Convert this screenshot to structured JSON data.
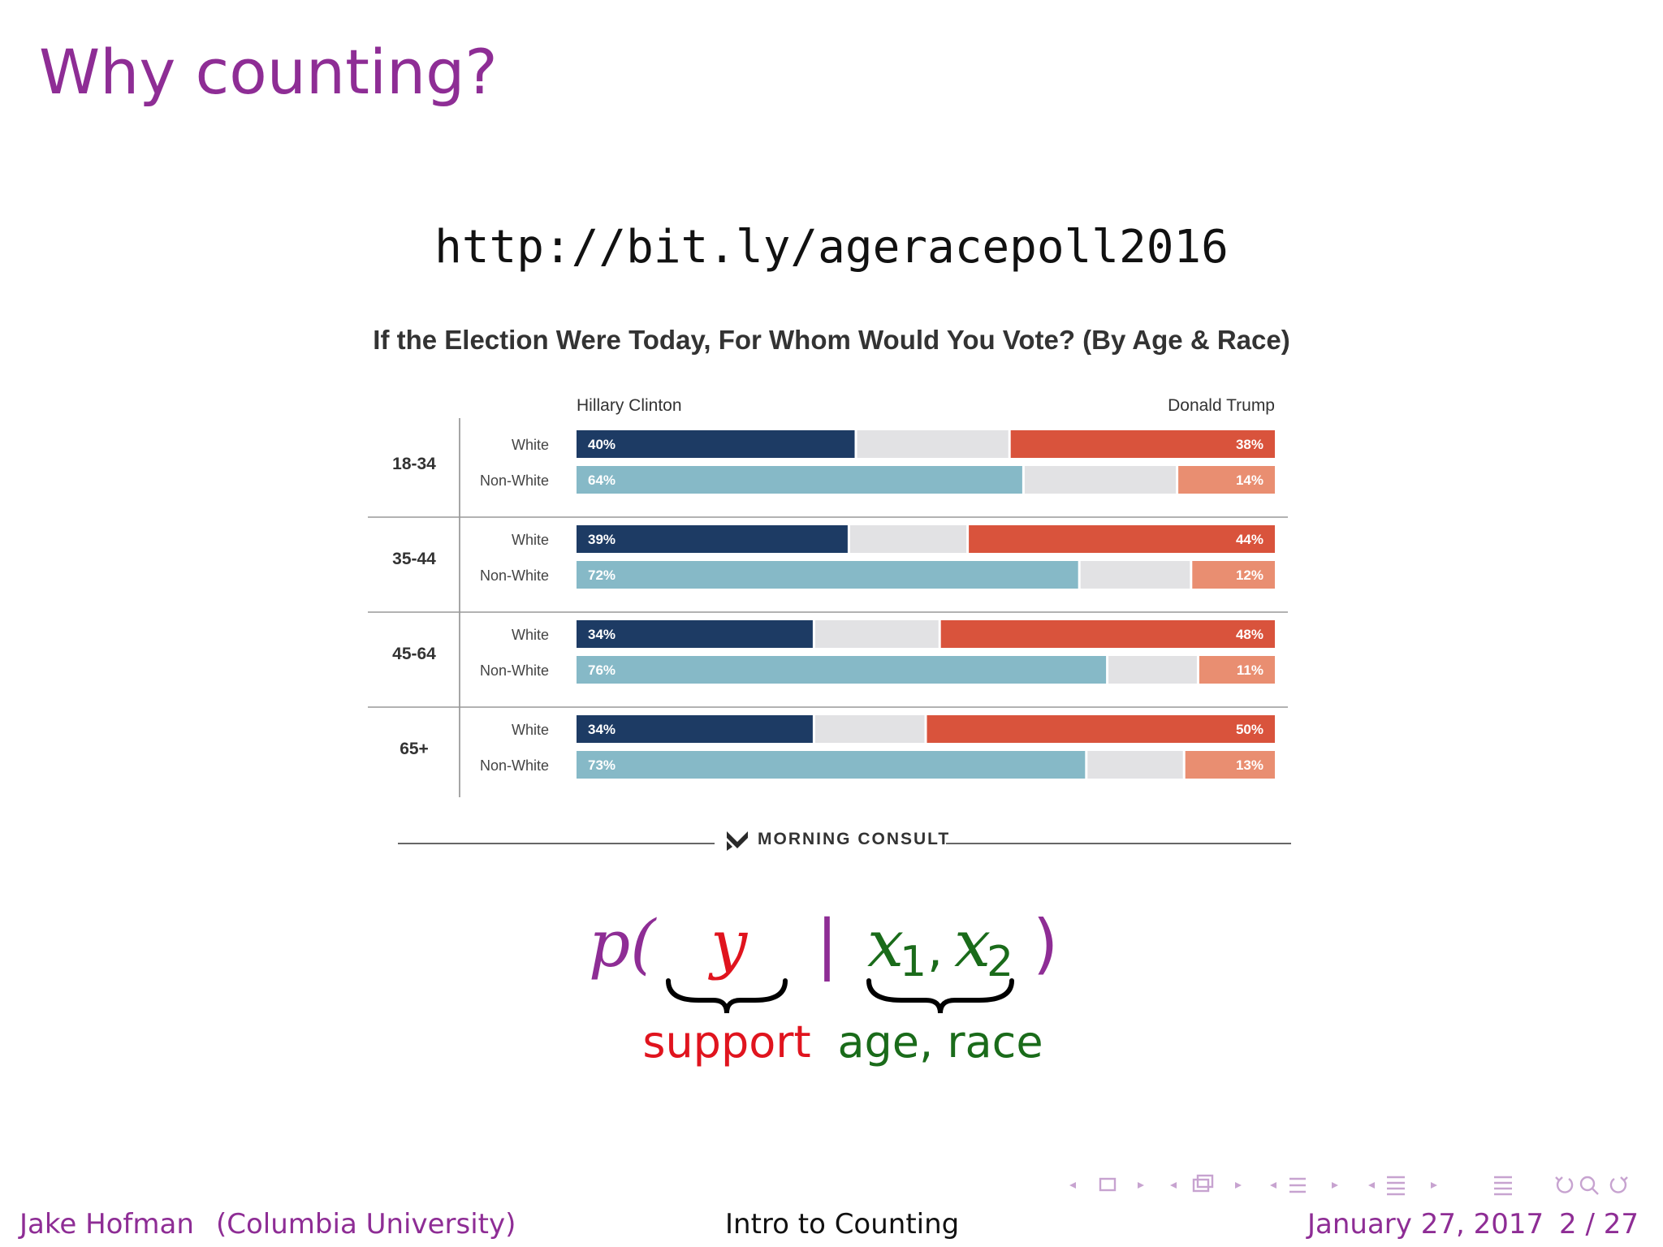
{
  "slide": {
    "title": "Why counting?",
    "url": "http://bit.ly/ageracepoll2016"
  },
  "chart_data": {
    "type": "bar",
    "title": "If the Election Were Today, For Whom Would You Vote? (By Age & Race)",
    "left_legend": "Hillary Clinton",
    "right_legend": "Donald Trump",
    "groups": [
      {
        "label": "18-34",
        "rows": [
          {
            "label": "White",
            "clinton": 40,
            "trump": 38
          },
          {
            "label": "Non-White",
            "clinton": 64,
            "trump": 14
          }
        ]
      },
      {
        "label": "35-44",
        "rows": [
          {
            "label": "White",
            "clinton": 39,
            "trump": 44
          },
          {
            "label": "Non-White",
            "clinton": 72,
            "trump": 12
          }
        ]
      },
      {
        "label": "45-64",
        "rows": [
          {
            "label": "White",
            "clinton": 34,
            "trump": 48
          },
          {
            "label": "Non-White",
            "clinton": 76,
            "trump": 11
          }
        ]
      },
      {
        "label": "65+",
        "rows": [
          {
            "label": "White",
            "clinton": 34,
            "trump": 50
          },
          {
            "label": "Non-White",
            "clinton": 73,
            "trump": 13
          }
        ]
      }
    ],
    "xlim": [
      0,
      100
    ],
    "colors": {
      "clinton_white": "#1d3b64",
      "clinton_nonwhite": "#86b9c7",
      "undecided": "#e2e2e4",
      "trump_white": "#d9533c",
      "trump_nonwhite": "#e98e71"
    },
    "source": "MORNING CONSULT"
  },
  "formula": {
    "p": "p(",
    "y": "y",
    "bar": "|",
    "x1": "x",
    "x1_sub": "1",
    "comma": ",",
    "x2": "x",
    "x2_sub": "2",
    "close": ")",
    "support_label": "support",
    "age_race_label": "age, race",
    "colors": {
      "paren": "#8e2d95",
      "support": "#e0141e",
      "covariates": "#1a6b1a"
    }
  },
  "footer": {
    "author": "Jake Hofman",
    "affiliation": "(Columbia University)",
    "talk_title": "Intro to Counting",
    "date": "January 27, 2017",
    "page": "2 / 27"
  }
}
